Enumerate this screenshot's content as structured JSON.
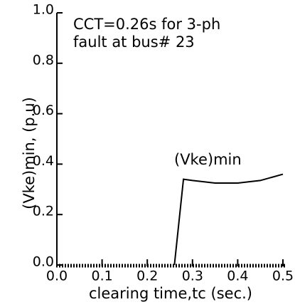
{
  "chart_data": {
    "type": "line",
    "x": [
      0.26,
      0.28,
      0.3,
      0.35,
      0.4,
      0.45,
      0.5
    ],
    "values": [
      0,
      0.34,
      0.335,
      0.325,
      0.325,
      0.335,
      0.36
    ],
    "color": "#000000",
    "xlabel": "clearing time,tc (sec.)",
    "ylabel": "(Vke)min, (p.u)",
    "annotations": [
      "CCT=0.26s for 3-ph",
      "fault at bus# 23",
      "(Vke)min"
    ],
    "xlim": [
      0,
      0.5
    ],
    "ylim": [
      0,
      1
    ],
    "xticks": [
      {
        "value": 0,
        "label": "0.0"
      },
      {
        "value": 0.1,
        "label": "0.1"
      },
      {
        "value": 0.2,
        "label": "0.2"
      },
      {
        "value": 0.3,
        "label": "0.3"
      },
      {
        "value": 0.4,
        "label": "0.4"
      },
      {
        "value": 0.5,
        "label": "0.5"
      }
    ],
    "yticks": [
      {
        "value": 0,
        "label": "0.0"
      },
      {
        "value": 0.2,
        "label": "0.2"
      },
      {
        "value": 0.4,
        "label": "0.4"
      },
      {
        "value": 0.6,
        "label": "0.6"
      },
      {
        "value": 0.8,
        "label": "0.8"
      },
      {
        "value": 1,
        "label": "1.0"
      }
    ]
  }
}
